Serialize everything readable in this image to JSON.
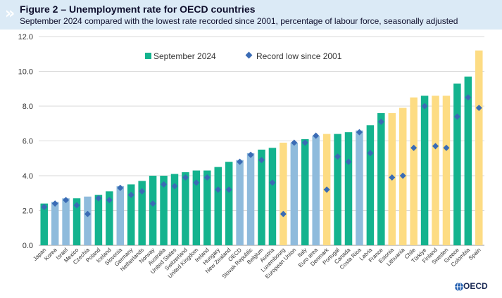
{
  "header": {
    "title": "Figure 2 – Unemployment rate for OECD countries",
    "subtitle": "September 2024 compared with the lowest rate recorded since 2001, percentage of labour force, seasonally adjusted"
  },
  "logo_text": "OECD",
  "colors": {
    "header_bg": "#dbeaf6",
    "bar_default": "#14b38e",
    "bar_highlight": "#fddc83",
    "bar_aggregate": "#8fbbdc",
    "marker": "#3a6bb5"
  },
  "chart_data": {
    "type": "bar",
    "ylim": [
      0,
      12
    ],
    "yticks": [
      "0.0",
      "2.0",
      "4.0",
      "6.0",
      "8.0",
      "10.0",
      "12.0"
    ],
    "grid": true,
    "legend_position": "top-center",
    "legend": [
      "September 2024",
      "Record low since 2001"
    ],
    "categories": [
      "Japan",
      "Korea",
      "Israel",
      "Mexico",
      "Czechia",
      "Poland",
      "Iceland",
      "Slovenia",
      "Germany",
      "Netherlands",
      "Norway",
      "Australia",
      "United States",
      "Switzerland",
      "United Kingdom",
      "Ireland",
      "Hungary",
      "New Zealand",
      "OECD",
      "Slovak Republic",
      "Belgium",
      "Austria",
      "Luxembourg",
      "European Union",
      "Italy",
      "Euro area",
      "Denmark",
      "Portugal",
      "Canada",
      "Costa Rica",
      "Latvia",
      "France",
      "Estonia",
      "Lithuania",
      "Chile",
      "Türkiye",
      "Finland",
      "Sweden",
      "Greece",
      "Colombia",
      "Spain"
    ],
    "series": [
      {
        "name": "September 2024",
        "values": [
          2.4,
          2.5,
          2.7,
          2.7,
          2.8,
          2.9,
          3.1,
          3.4,
          3.5,
          3.7,
          4.0,
          4.0,
          4.1,
          4.2,
          4.3,
          4.3,
          4.5,
          4.8,
          4.9,
          5.3,
          5.5,
          5.6,
          5.9,
          5.9,
          6.1,
          6.3,
          6.4,
          6.4,
          6.5,
          6.6,
          6.9,
          7.6,
          7.6,
          7.9,
          8.5,
          8.6,
          8.6,
          8.6,
          9.3,
          9.7,
          11.2
        ],
        "groups": [
          "d",
          "a",
          "a",
          "d",
          "a",
          "d",
          "d",
          "a",
          "d",
          "d",
          "d",
          "d",
          "d",
          "d",
          "d",
          "d",
          "d",
          "d",
          "a",
          "a",
          "d",
          "d",
          "h",
          "a",
          "d",
          "a",
          "h",
          "d",
          "d",
          "a",
          "d",
          "d",
          "h",
          "h",
          "h",
          "d",
          "h",
          "h",
          "d",
          "d",
          "h"
        ]
      },
      {
        "name": "Record low since 2001",
        "values": [
          2.2,
          2.4,
          2.6,
          2.3,
          1.8,
          2.7,
          2.6,
          3.3,
          2.9,
          3.1,
          2.4,
          3.5,
          3.4,
          3.9,
          3.6,
          3.9,
          3.2,
          3.2,
          4.8,
          5.2,
          4.9,
          3.6,
          1.8,
          5.9,
          5.9,
          6.3,
          3.2,
          5.1,
          4.8,
          6.5,
          5.3,
          7.1,
          3.9,
          4.0,
          5.6,
          8.0,
          5.7,
          5.6,
          7.4,
          8.5,
          7.9
        ]
      }
    ]
  }
}
